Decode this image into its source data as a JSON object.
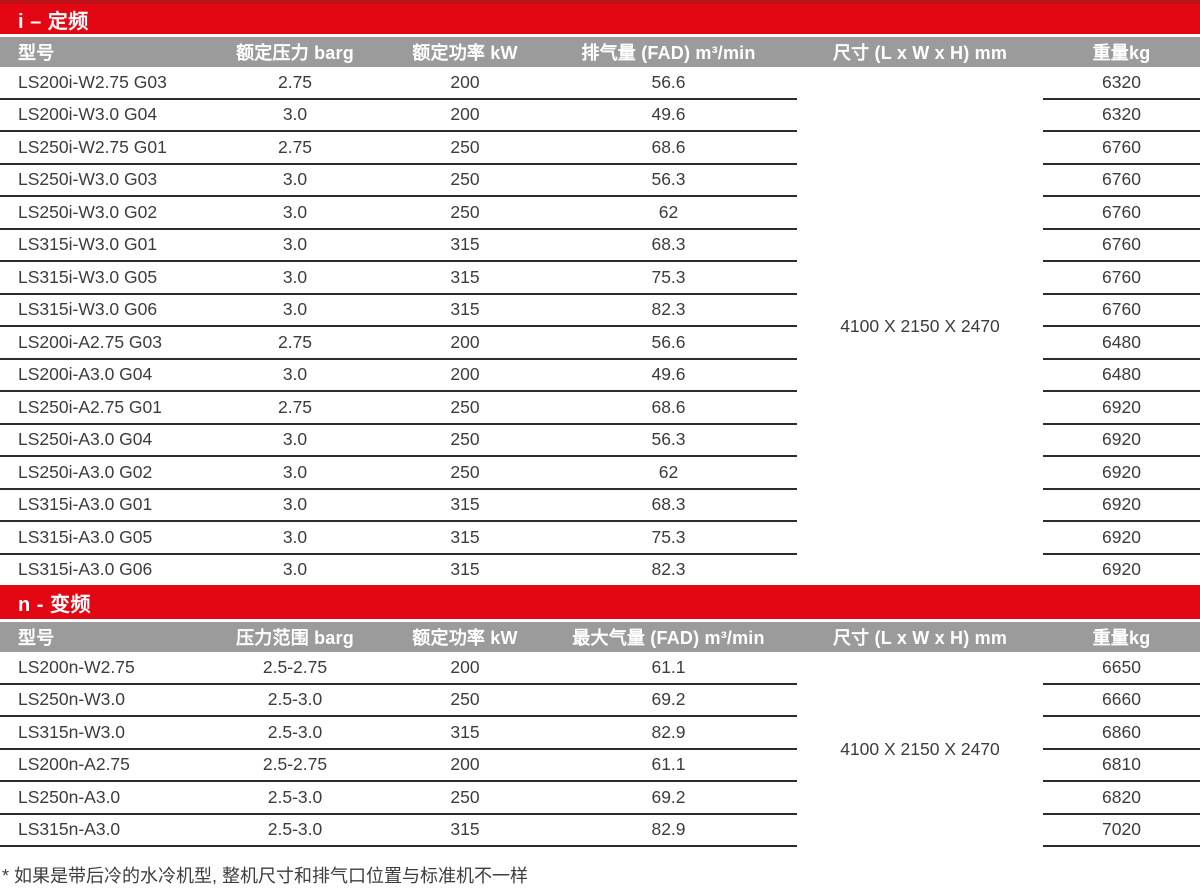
{
  "page": {
    "accent_red": "#e30613",
    "accent_red_dark": "#bc1217",
    "header_gray": "#9c9b9b",
    "row_line_color": "#2c2c2b",
    "body_text_color": "#3c3c3b",
    "footnote": "* 如果是带后冷的水冷机型, 整机尺寸和排气口位置与标准机不一样"
  },
  "tables": [
    {
      "section_title": "i – 定频",
      "columns": [
        "型号",
        "额定压力 barg",
        "额定功率 kW",
        "排气量 (FAD) m³/min",
        "尺寸 (L x W x H) mm",
        "重量kg"
      ],
      "dimensions": "4100 X 2150 X 2470",
      "rows": [
        [
          "LS200i-W2.75 G03",
          "2.75",
          "200",
          "56.6",
          "6320"
        ],
        [
          "LS200i-W3.0 G04",
          "3.0",
          "200",
          "49.6",
          "6320"
        ],
        [
          "LS250i-W2.75 G01",
          "2.75",
          "250",
          "68.6",
          "6760"
        ],
        [
          "LS250i-W3.0 G03",
          "3.0",
          "250",
          "56.3",
          "6760"
        ],
        [
          "LS250i-W3.0 G02",
          "3.0",
          "250",
          "62",
          "6760"
        ],
        [
          "LS315i-W3.0 G01",
          "3.0",
          "315",
          "68.3",
          "6760"
        ],
        [
          "LS315i-W3.0 G05",
          "3.0",
          "315",
          "75.3",
          "6760"
        ],
        [
          "LS315i-W3.0 G06",
          "3.0",
          "315",
          "82.3",
          "6760"
        ],
        [
          "LS200i-A2.75 G03",
          "2.75",
          "200",
          "56.6",
          "6480"
        ],
        [
          "LS200i-A3.0 G04",
          "3.0",
          "200",
          "49.6",
          "6480"
        ],
        [
          "LS250i-A2.75 G01",
          "2.75",
          "250",
          "68.6",
          "6920"
        ],
        [
          "LS250i-A3.0 G04",
          "3.0",
          "250",
          "56.3",
          "6920"
        ],
        [
          "LS250i-A3.0 G02",
          "3.0",
          "250",
          "62",
          "6920"
        ],
        [
          "LS315i-A3.0 G01",
          "3.0",
          "315",
          "68.3",
          "6920"
        ],
        [
          "LS315i-A3.0 G05",
          "3.0",
          "315",
          "75.3",
          "6920"
        ],
        [
          "LS315i-A3.0 G06",
          "3.0",
          "315",
          "82.3",
          "6920"
        ]
      ]
    },
    {
      "section_title": "n - 变频",
      "columns": [
        "型号",
        "压力范围 barg",
        "额定功率 kW",
        "最大气量 (FAD) m³/min",
        "尺寸 (L x W x H) mm",
        "重量kg"
      ],
      "dimensions": "4100 X 2150 X 2470",
      "rows": [
        [
          "LS200n-W2.75",
          "2.5-2.75",
          "200",
          "61.1",
          "6650"
        ],
        [
          "LS250n-W3.0",
          "2.5-3.0",
          "250",
          "69.2",
          "6660"
        ],
        [
          "LS315n-W3.0",
          "2.5-3.0",
          "315",
          "82.9",
          "6860"
        ],
        [
          "LS200n-A2.75",
          "2.5-2.75",
          "200",
          "61.1",
          "6810"
        ],
        [
          "LS250n-A3.0",
          "2.5-3.0",
          "250",
          "69.2",
          "6820"
        ],
        [
          "LS315n-A3.0",
          "2.5-3.0",
          "315",
          "82.9",
          "7020"
        ]
      ]
    }
  ]
}
